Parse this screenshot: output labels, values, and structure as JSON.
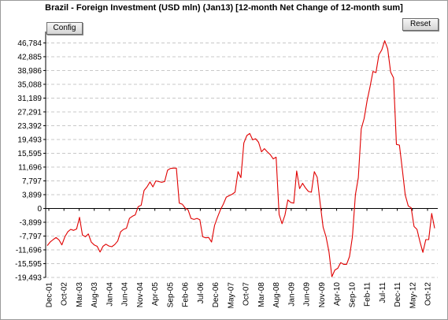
{
  "header": {
    "config_label": "Config",
    "reset_label": "Reset"
  },
  "chart_data": {
    "type": "line",
    "title": "Brazil - Foreign Investment (USD mln) (Jan13) [12-month Net Change of 12-month sum]",
    "xlabel": "",
    "ylabel": "",
    "ylim": [
      -19493,
      50000
    ],
    "y_ticks": [
      "46,784",
      "42,885",
      "38,986",
      "35,088",
      "31,189",
      "27,291",
      "23,392",
      "19,493",
      "15,595",
      "11,696",
      "7,797",
      "3,899",
      "0",
      "-3,899",
      "-7,797",
      "-11,696",
      "-15,595",
      "-19,493"
    ],
    "x_ticks": [
      "Dec-01",
      "Oct-02",
      "Mar-03",
      "Aug-03",
      "Jan-04",
      "Jun-04",
      "Nov-04",
      "Apr-05",
      "Sep-05",
      "Feb-06",
      "Jul-06",
      "Dec-06",
      "May-07",
      "Oct-07",
      "Mar-08",
      "Aug-08",
      "Jan-09",
      "Jun-09",
      "Nov-09",
      "Apr-10",
      "Sep-10",
      "Feb-11",
      "Jul-11",
      "Dec-11",
      "May-12",
      "Oct-12"
    ],
    "grid": true,
    "line_color": "#e00000",
    "series": [
      {
        "name": "",
        "values": [
          -10500,
          -9500,
          -8800,
          -8200,
          -8900,
          -10300,
          -8000,
          -6600,
          -5900,
          -6200,
          -5800,
          -2500,
          -7500,
          -8000,
          -7200,
          -9500,
          -10300,
          -10700,
          -12300,
          -10700,
          -10100,
          -10600,
          -10800,
          -10200,
          -9200,
          -6600,
          -5900,
          -5600,
          -2800,
          -2200,
          -1800,
          500,
          900,
          5100,
          6100,
          7500,
          6100,
          7800,
          7600,
          7400,
          7600,
          10800,
          11300,
          11400,
          11400,
          1500,
          1200,
          100,
          -400,
          -2800,
          -3100,
          -2800,
          -3200,
          -8000,
          -8300,
          -8200,
          -9500,
          -4800,
          -2500,
          -400,
          1200,
          3200,
          3600,
          4000,
          4600,
          10400,
          8700,
          18500,
          20600,
          21200,
          19400,
          19700,
          18700,
          16000,
          16900,
          16000,
          15200,
          14000,
          14500,
          -1700,
          -4300,
          -1900,
          2400,
          1700,
          1500,
          10600,
          5600,
          7100,
          5800,
          4800,
          4600,
          10400,
          8800,
          1500,
          -5300,
          -8000,
          -12200,
          -19300,
          -17400,
          -16900,
          -15300,
          -15800,
          -15800,
          -13600,
          -8000,
          3900,
          8700,
          22500,
          25400,
          30500,
          34400,
          38700,
          38400,
          43400,
          44800,
          47400,
          45100,
          38600,
          36900,
          18100,
          17900,
          11000,
          3800,
          700,
          200,
          -5100,
          -5900,
          -9400,
          -12400,
          -8800,
          -8800,
          -1400,
          -5600
        ]
      }
    ]
  }
}
